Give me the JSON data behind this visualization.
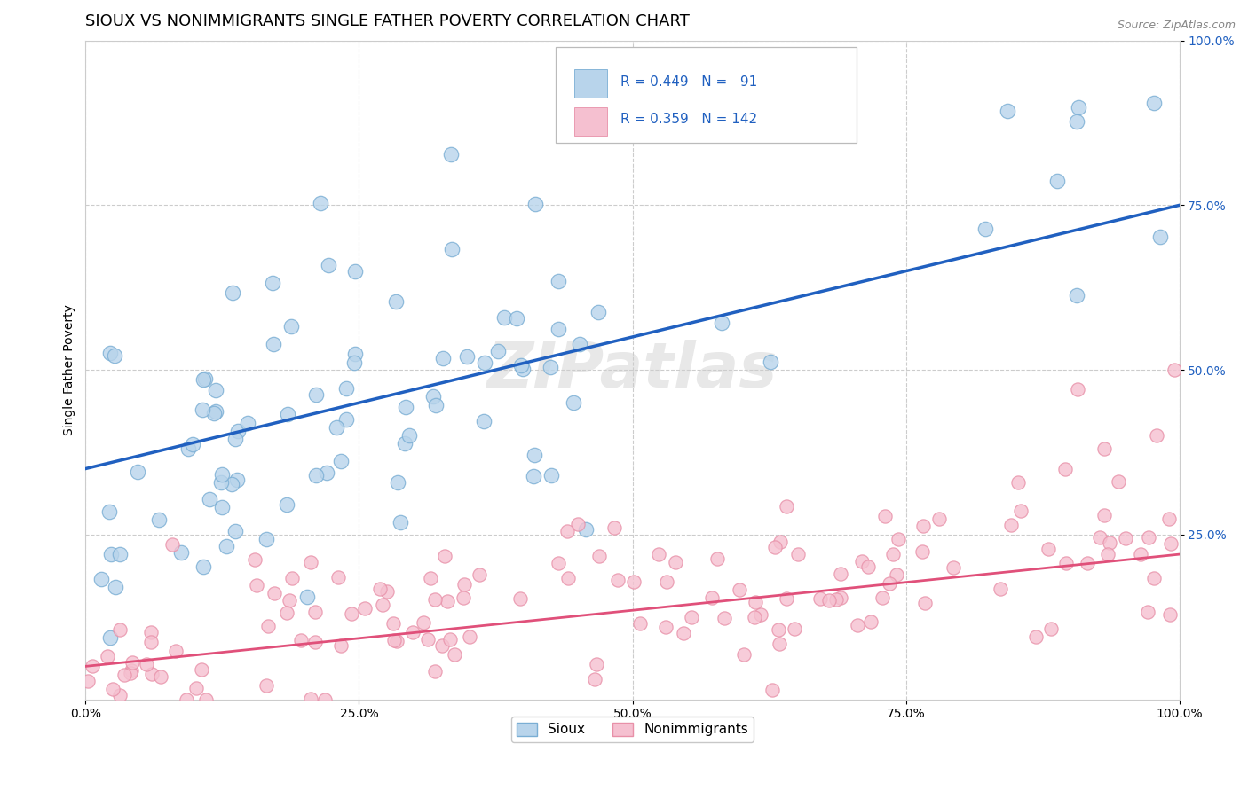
{
  "title": "SIOUX VS NONIMMIGRANTS SINGLE FATHER POVERTY CORRELATION CHART",
  "source_text": "Source: ZipAtlas.com",
  "ylabel": "Single Father Poverty",
  "xlabel": "",
  "watermark": "ZIPatlas",
  "sioux": {
    "R": 0.449,
    "N": 91,
    "dot_color": "#b8d4eb",
    "dot_edge_color": "#7aaed4",
    "line_color": "#2060c0"
  },
  "nonimmigrants": {
    "R": 0.359,
    "N": 142,
    "dot_color": "#f5c0d0",
    "dot_edge_color": "#e890a8",
    "line_color": "#e0507a"
  },
  "xlim": [
    0.0,
    1.0
  ],
  "ylim": [
    0.0,
    1.0
  ],
  "ytick_positions": [
    0.25,
    0.5,
    0.75,
    1.0
  ],
  "ytick_labels": [
    "25.0%",
    "50.0%",
    "75.0%",
    "100.0%"
  ],
  "xtick_positions": [
    0.0,
    0.25,
    0.5,
    0.75,
    1.0
  ],
  "xtick_labels": [
    "0.0%",
    "25.0%",
    "50.0%",
    "75.0%",
    "100.0%"
  ],
  "title_fontsize": 13,
  "label_fontsize": 10,
  "tick_fontsize": 10,
  "background_color": "#ffffff",
  "grid_color": "#cccccc",
  "legend_text_color": "#2060c0",
  "sioux_trend_start_y": 0.35,
  "sioux_trend_end_y": 0.75,
  "nonimm_trend_start_y": 0.05,
  "nonimm_trend_end_y": 0.22
}
